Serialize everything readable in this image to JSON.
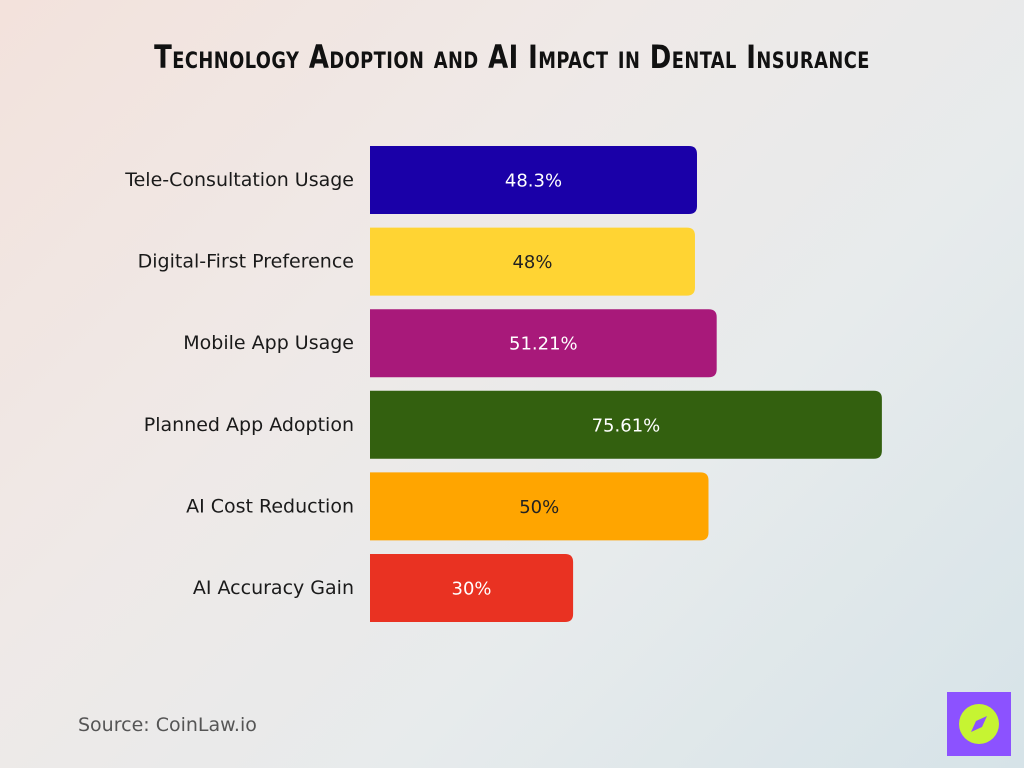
{
  "chart_data": {
    "type": "bar",
    "orientation": "horizontal",
    "title": "Technology Adoption and AI Impact in Dental Insurance",
    "categories": [
      "Tele-Consultation Usage",
      "Digital-First Preference",
      "Mobile App Usage",
      "Planned App Adoption",
      "AI Cost Reduction",
      "AI Accuracy Gain"
    ],
    "values": [
      48.3,
      48,
      51.21,
      75.61,
      50,
      30
    ],
    "value_labels": [
      "48.3%",
      "48%",
      "51.21%",
      "75.61%",
      "50%",
      "30%"
    ],
    "colors": [
      "#1a00a8",
      "#ffd433",
      "#a8197a",
      "#33600f",
      "#ffa500",
      "#e93222"
    ],
    "label_colors": [
      "#ffffff",
      "#222222",
      "#ffffff",
      "#ffffff",
      "#222222",
      "#ffffff"
    ],
    "xlim": [
      0,
      100
    ],
    "grid": false,
    "legend": "none"
  },
  "source": "Source: CoinLaw.io",
  "logo": {
    "icon": "compass-icon",
    "background": "#8c52ff",
    "accent": "#c6f432"
  }
}
